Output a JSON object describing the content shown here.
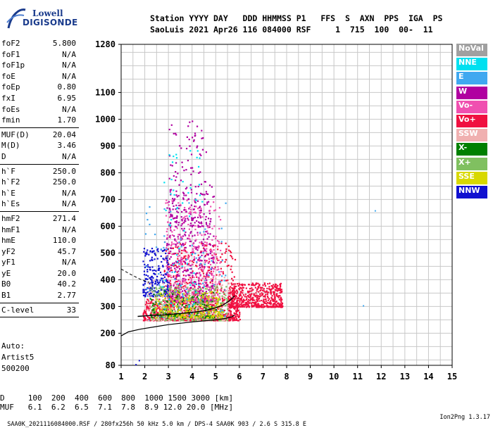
{
  "logo": {
    "line1": "Lowell",
    "line2": "DIGISONDE"
  },
  "header": {
    "line1": "Station YYYY DAY   DDD HHMMSS P1   FFS  S  AXN  PPS  IGA  PS",
    "line2": "SaoLuis 2021 Apr26 116 084000 RSF     1  715  100  00-  11"
  },
  "params": {
    "group1": [
      {
        "name": "foF2",
        "value": "5.800"
      },
      {
        "name": "foF1",
        "value": "N/A"
      },
      {
        "name": "foF1p",
        "value": "N/A"
      },
      {
        "name": "foE",
        "value": "N/A"
      },
      {
        "name": "foEp",
        "value": "0.80"
      },
      {
        "name": "fxI",
        "value": "6.95"
      },
      {
        "name": "foEs",
        "value": "N/A"
      },
      {
        "name": "fmin",
        "value": "1.70"
      }
    ],
    "group2": [
      {
        "name": "MUF(D)",
        "value": "20.04"
      },
      {
        "name": "M(D)",
        "value": "3.46"
      },
      {
        "name": "D",
        "value": "N/A"
      }
    ],
    "group3": [
      {
        "name": "h`F",
        "value": "250.0"
      },
      {
        "name": "h`F2",
        "value": "250.0"
      },
      {
        "name": "h`E",
        "value": "N/A"
      },
      {
        "name": "h`Es",
        "value": "N/A"
      }
    ],
    "group4": [
      {
        "name": "hmF2",
        "value": "271.4"
      },
      {
        "name": "hmF1",
        "value": "N/A"
      },
      {
        "name": "hmE",
        "value": "110.0"
      },
      {
        "name": "yF2",
        "value": "45.7"
      },
      {
        "name": "yF1",
        "value": "N/A"
      },
      {
        "name": "yE",
        "value": "20.0"
      },
      {
        "name": "B0",
        "value": "40.2"
      },
      {
        "name": "B1",
        "value": "2.77"
      }
    ],
    "group5": [
      {
        "name": "C-level",
        "value": "33"
      }
    ]
  },
  "auto": {
    "line1": "Auto:",
    "line2": "Artist5",
    "line3": "500200"
  },
  "legend": [
    {
      "label": "NoVal",
      "color": "#a0a0a0"
    },
    {
      "label": "NNE",
      "color": "#00e0f0"
    },
    {
      "label": "E",
      "color": "#40a8f0"
    },
    {
      "label": "W",
      "color": "#b000a0"
    },
    {
      "label": "Vo-",
      "color": "#f050b0"
    },
    {
      "label": "Vo+",
      "color": "#f01040"
    },
    {
      "label": "SSW",
      "color": "#f0b0b0"
    },
    {
      "label": "X-",
      "color": "#008000"
    },
    {
      "label": "X+",
      "color": "#80c060"
    },
    {
      "label": "SSE",
      "color": "#d8d800"
    },
    {
      "label": "NNW",
      "color": "#1010d0"
    }
  ],
  "footer": {
    "d_line": "D     100  200  400  600  800  1000 1500 3000 [km]",
    "muf_line": "MUF   6.1  6.2  6.5  7.1  7.8  8.9 12.0 20.0 [MHz]",
    "file_line": "SAA0K_2021116084000.RSF / 280fx256h 50 kHz 5.0 km / DPS-4 SAA0K 903 / 2.6 S 315.8 E",
    "version": "Ion2Png 1.3.17"
  },
  "chart_data": {
    "type": "scatter",
    "xlim": [
      1,
      15
    ],
    "x_ticks": [
      "1",
      "2",
      "3",
      "4",
      "5",
      "6",
      "7",
      "8",
      "9",
      "10",
      "11",
      "12",
      "13",
      "14",
      "15"
    ],
    "ylim": [
      80,
      1280
    ],
    "y_ticks": [
      "80",
      "200",
      "300",
      "400",
      "500",
      "600",
      "700",
      "800",
      "900",
      "1000",
      "1100",
      "1280"
    ],
    "grid": true,
    "legend_position": "right",
    "profile_curve": [
      [
        1.0,
        190
      ],
      [
        1.3,
        205
      ],
      [
        1.8,
        215
      ],
      [
        2.5,
        225
      ],
      [
        3.0,
        232
      ],
      [
        3.5,
        237
      ],
      [
        4.0,
        242
      ],
      [
        4.5,
        246
      ],
      [
        5.0,
        250
      ],
      [
        5.4,
        255
      ],
      [
        5.7,
        262
      ],
      [
        5.8,
        268
      ]
    ],
    "trace_curve": [
      [
        1.7,
        263
      ],
      [
        2.2,
        266
      ],
      [
        2.8,
        268
      ],
      [
        3.3,
        272
      ],
      [
        3.8,
        276
      ],
      [
        4.2,
        280
      ],
      [
        4.6,
        286
      ],
      [
        5.0,
        295
      ],
      [
        5.3,
        305
      ],
      [
        5.6,
        322
      ],
      [
        5.8,
        340
      ]
    ],
    "dashed_curve": [
      [
        1.0,
        440
      ],
      [
        1.4,
        420
      ],
      [
        1.8,
        402
      ],
      [
        2.2,
        390
      ]
    ],
    "clusters": [
      {
        "name": "Vo+",
        "x": [
          1.9,
          6.0
        ],
        "y": [
          250,
          330
        ],
        "n": 900,
        "color": "#f01040"
      },
      {
        "name": "Vo+",
        "x": [
          5.5,
          7.8
        ],
        "y": [
          300,
          390
        ],
        "n": 500,
        "color": "#f01040"
      },
      {
        "name": "Vo+",
        "x": [
          2.8,
          5.8
        ],
        "y": [
          330,
          540
        ],
        "n": 350,
        "color": "#f01040"
      },
      {
        "name": "W",
        "x": [
          2.9,
          4.9
        ],
        "y": [
          320,
          760
        ],
        "n": 450,
        "color": "#b000a0"
      },
      {
        "name": "Vo-",
        "x": [
          2.8,
          5.2
        ],
        "y": [
          320,
          700
        ],
        "n": 350,
        "color": "#f050b0"
      },
      {
        "name": "W",
        "x": [
          3.0,
          4.6
        ],
        "y": [
          600,
          1000
        ],
        "n": 120,
        "color": "#b000a0"
      },
      {
        "name": "NNW",
        "x": [
          1.9,
          3.0
        ],
        "y": [
          340,
          520
        ],
        "n": 220,
        "color": "#1010d0"
      },
      {
        "name": "X+",
        "x": [
          2.2,
          5.5
        ],
        "y": [
          250,
          380
        ],
        "n": 400,
        "color": "#80c060"
      },
      {
        "name": "X-",
        "x": [
          2.2,
          5.0
        ],
        "y": [
          260,
          360
        ],
        "n": 180,
        "color": "#008000"
      },
      {
        "name": "SSE",
        "x": [
          2.4,
          5.3
        ],
        "y": [
          260,
          360
        ],
        "n": 220,
        "color": "#d8d800"
      },
      {
        "name": "E",
        "x": [
          2.0,
          5.4
        ],
        "y": [
          250,
          700
        ],
        "n": 90,
        "color": "#40a8f0"
      },
      {
        "name": "NNE",
        "x": [
          2.7,
          4.5
        ],
        "y": [
          300,
          900
        ],
        "n": 60,
        "color": "#00e0f0"
      },
      {
        "name": "SSW",
        "x": [
          2.0,
          5.6
        ],
        "y": [
          250,
          420
        ],
        "n": 160,
        "color": "#f0b0b0"
      }
    ]
  }
}
